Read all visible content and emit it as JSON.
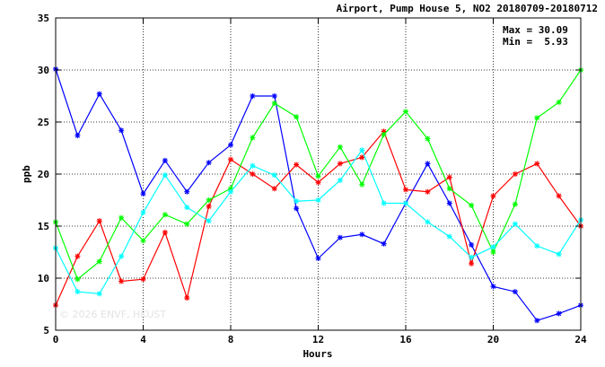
{
  "chart_data": {
    "type": "line",
    "title": "Airport, Pump House 5, NO2 20180709-20180712",
    "xlabel": "Hours",
    "ylabel": "ppb",
    "xlim": [
      0,
      24
    ],
    "ylim": [
      5,
      35
    ],
    "xticks": [
      0,
      4,
      8,
      12,
      16,
      20,
      24
    ],
    "yticks": [
      5,
      10,
      15,
      20,
      25,
      30,
      35
    ],
    "grid": true,
    "marker": "asterisk",
    "stats": {
      "max_label": "Max = 30.09",
      "min_label": "Min =  5.93"
    },
    "watermark": "© 2026  ENVF, HKUST",
    "x": [
      0,
      1,
      2,
      3,
      4,
      5,
      6,
      7,
      8,
      9,
      10,
      11,
      12,
      13,
      14,
      15,
      16,
      17,
      18,
      19,
      20,
      21,
      22,
      23,
      24
    ],
    "series": [
      {
        "color": "#0000ff",
        "values": [
          30.09,
          23.7,
          27.7,
          24.2,
          18.1,
          21.3,
          18.3,
          21.1,
          22.8,
          27.5,
          27.5,
          16.7,
          11.9,
          13.9,
          14.2,
          13.3,
          17.2,
          21.0,
          17.2,
          13.2,
          9.2,
          8.7,
          5.93,
          6.6,
          7.4
        ]
      },
      {
        "color": "#ff0000",
        "values": [
          7.4,
          12.1,
          15.5,
          9.7,
          9.9,
          14.4,
          8.1,
          16.9,
          21.4,
          20.0,
          18.6,
          20.9,
          19.2,
          21.0,
          21.6,
          24.1,
          18.5,
          18.3,
          19.7,
          11.4,
          17.9,
          20.0,
          21.0,
          17.9,
          15.0
        ]
      },
      {
        "color": "#00ff00",
        "values": [
          15.4,
          9.9,
          11.6,
          15.8,
          13.6,
          16.1,
          15.2,
          17.5,
          18.6,
          23.5,
          26.8,
          25.5,
          19.8,
          22.6,
          19.0,
          23.8,
          26.0,
          23.4,
          18.6,
          17.0,
          12.5,
          17.1,
          25.4,
          26.9,
          30.0
        ]
      },
      {
        "color": "#00ffff",
        "values": [
          12.9,
          8.7,
          8.5,
          12.1,
          16.3,
          19.9,
          16.8,
          15.5,
          18.3,
          20.8,
          19.9,
          17.4,
          17.5,
          19.4,
          22.3,
          17.2,
          17.2,
          15.4,
          14.0,
          12.0,
          13.0,
          15.2,
          13.1,
          12.3,
          15.6
        ]
      }
    ]
  }
}
